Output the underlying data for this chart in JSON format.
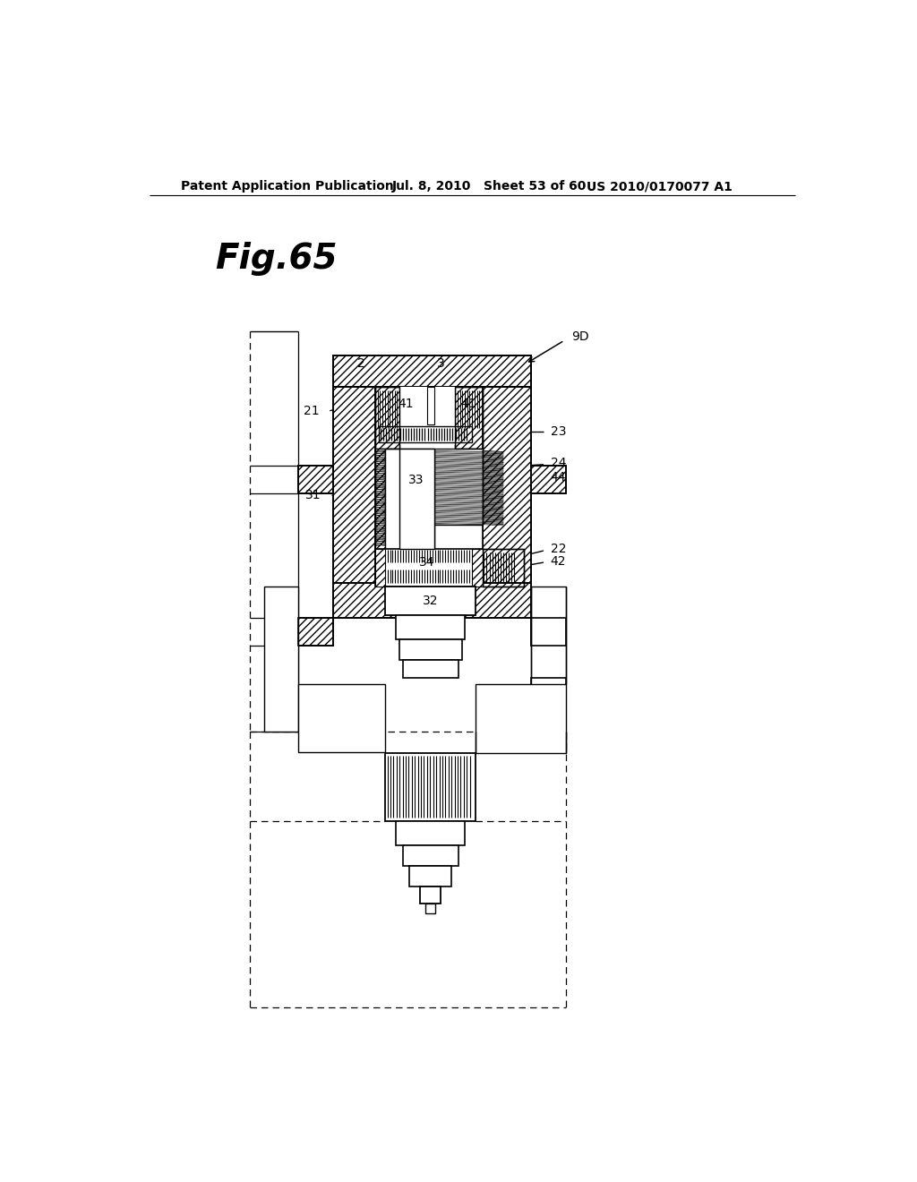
{
  "bg_color": "#ffffff",
  "header_left": "Patent Application Publication",
  "header_mid": "Jul. 8, 2010   Sheet 53 of 60",
  "header_right": "US 2010/0170077 A1",
  "fig_title": "Fig.65"
}
